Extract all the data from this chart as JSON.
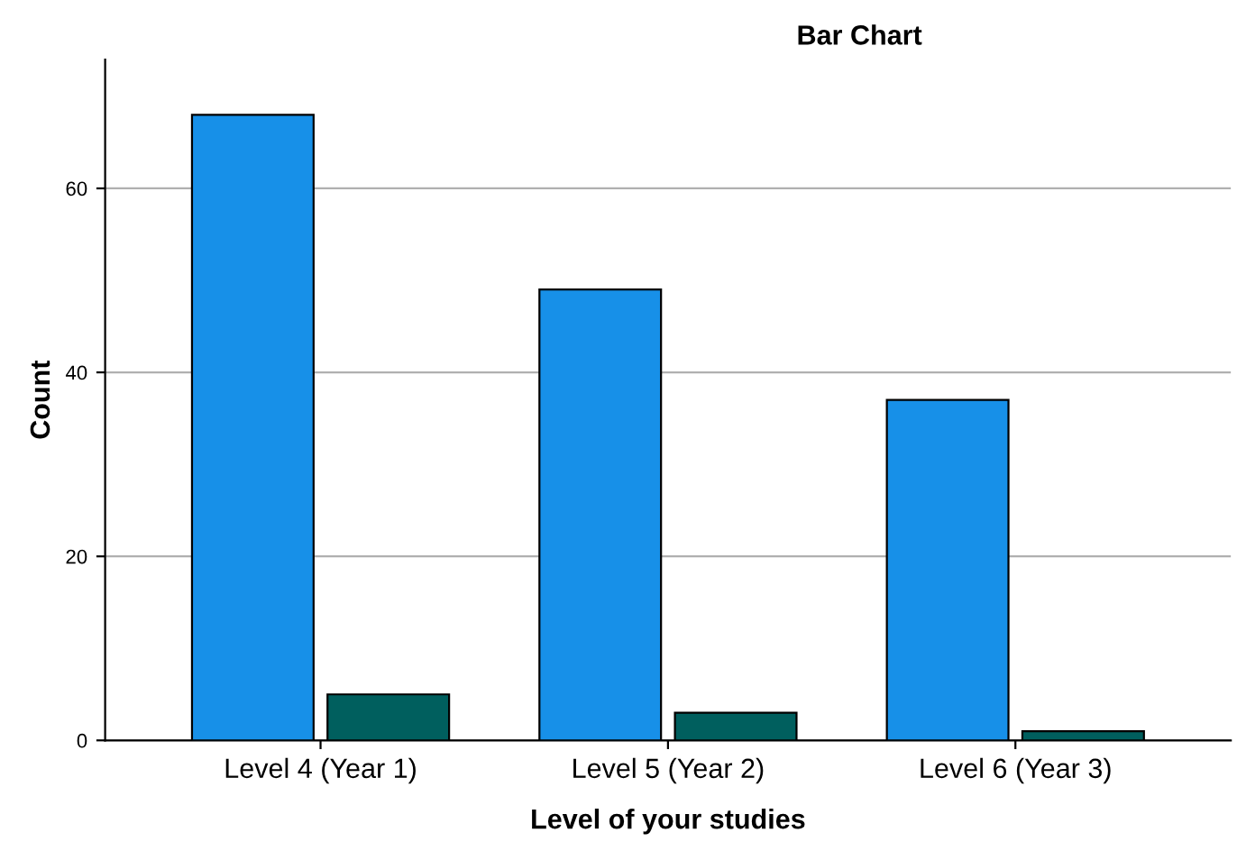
{
  "chart_data": {
    "type": "bar",
    "title": "Bar Chart",
    "xlabel": "Level of your studies",
    "ylabel": "Count",
    "categories": [
      "Level 4 (Year 1)",
      "Level 5 (Year 2)",
      "Level 6 (Year 3)"
    ],
    "series": [
      {
        "color": "#1790e8",
        "values": [
          68,
          49,
          37
        ]
      },
      {
        "color": "#005f5e",
        "values": [
          5,
          3,
          1
        ]
      }
    ],
    "ylim": [
      0,
      74
    ],
    "yticks": [
      0,
      20,
      40,
      60
    ],
    "grid": "y",
    "legend": false
  }
}
